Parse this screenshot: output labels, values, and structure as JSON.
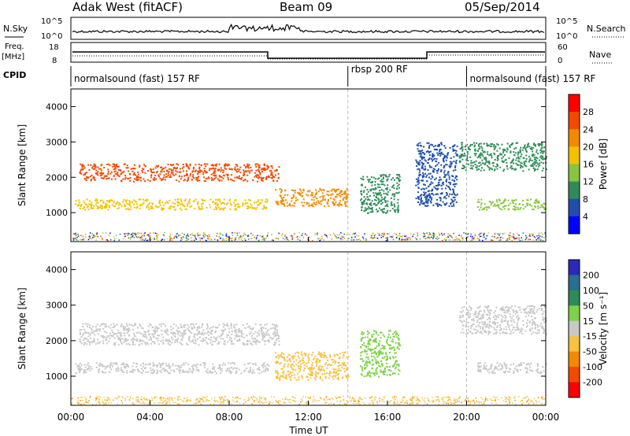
{
  "header": {
    "station": "Adak West (fitACF)",
    "beam": "Beam 09",
    "date": "05/Sep/2014"
  },
  "top_panels": {
    "nsky_label": "N.Sky",
    "nsky_ticks": [
      "10^5",
      "10^0"
    ],
    "nsearch_label": "N.Search",
    "nsearch_ticks": [
      "10^5",
      "10^0"
    ],
    "freq_label": "Freq.",
    "freq_unit": "[MHz]",
    "freq_ticks": [
      "18",
      "8"
    ],
    "nave_label": "Nave",
    "nave_ticks": [
      "60",
      "0"
    ],
    "cpid_label": "CPID"
  },
  "cpid_segments": [
    {
      "label": "normalsound (fast) 157 RF",
      "start": 0,
      "end": 14
    },
    {
      "label": "rbsp 200 RF",
      "start": 14,
      "end": 20
    },
    {
      "label": "normalsound (fast) 157 RF",
      "start": 20,
      "end": 24
    }
  ],
  "colorbars": {
    "power": {
      "label": "Power [dB]",
      "ticks": [
        "4",
        "8",
        "12",
        "16",
        "20",
        "24",
        "28"
      ],
      "colors": [
        "#0000ff",
        "#1f4faa",
        "#2e8b57",
        "#88c440",
        "#f2c200",
        "#f28a00",
        "#f24a00",
        "#ff0000"
      ]
    },
    "velocity": {
      "label": "Velocity [m s⁻¹]",
      "ticks": [
        "200",
        "100",
        "50",
        "15",
        "-15",
        "-50",
        "-100",
        "-200"
      ],
      "colors": [
        "#2a2ab8",
        "#2a6f8f",
        "#2e8b57",
        "#7fd14a",
        "#c8c8c8",
        "#f5c242",
        "#f28a00",
        "#f24a00",
        "#ff0000"
      ]
    }
  },
  "chart_data": [
    {
      "type": "heatmap",
      "title": "Power",
      "ylabel": "Slant Range [km]",
      "xlabel": "Time UT",
      "x_ticks": [
        "00:00",
        "04:00",
        "08:00",
        "12:00",
        "16:00",
        "20:00",
        "00:00"
      ],
      "y_ticks": [
        "1000",
        "2000",
        "3000",
        "4000"
      ],
      "xlim_hours": [
        0,
        24
      ],
      "ylim_km": [
        180,
        4500
      ],
      "regions": [
        {
          "t0": 0.4,
          "t1": 10.5,
          "r0": 1900,
          "r1": 2400,
          "level": 24
        },
        {
          "t0": 0.2,
          "t1": 10.0,
          "r0": 1100,
          "r1": 1400,
          "level": 16
        },
        {
          "t0": 10.3,
          "t1": 14.0,
          "r0": 1200,
          "r1": 1700,
          "level": 20
        },
        {
          "t0": 14.6,
          "t1": 16.6,
          "r0": 1000,
          "r1": 2100,
          "level": 8
        },
        {
          "t0": 17.4,
          "t1": 19.5,
          "r0": 1200,
          "r1": 3000,
          "level": 4
        },
        {
          "t0": 19.6,
          "t1": 24.0,
          "r0": 2200,
          "r1": 3000,
          "level": 8
        },
        {
          "t0": 20.5,
          "t1": 24.0,
          "r0": 1100,
          "r1": 1400,
          "level": 12
        }
      ]
    },
    {
      "type": "heatmap",
      "title": "Velocity",
      "ylabel": "Slant Range [km]",
      "xlabel": "Time UT",
      "x_ticks": [
        "00:00",
        "04:00",
        "08:00",
        "12:00",
        "16:00",
        "20:00",
        "00:00"
      ],
      "y_ticks": [
        "1000",
        "2000",
        "3000",
        "4000"
      ],
      "xlim_hours": [
        0,
        24
      ],
      "ylim_km": [
        180,
        4500
      ],
      "regions": [
        {
          "t0": 0.4,
          "t1": 10.5,
          "r0": 1900,
          "r1": 2500,
          "level": 0
        },
        {
          "t0": 0.2,
          "t1": 10.0,
          "r0": 1100,
          "r1": 1400,
          "level": 0
        },
        {
          "t0": 10.3,
          "t1": 14.0,
          "r0": 900,
          "r1": 1700,
          "level": -50
        },
        {
          "t0": 14.6,
          "t1": 16.6,
          "r0": 1000,
          "r1": 2300,
          "level": 20
        },
        {
          "t0": 19.6,
          "t1": 24.0,
          "r0": 2200,
          "r1": 3000,
          "level": 0
        },
        {
          "t0": 20.5,
          "t1": 24.0,
          "r0": 1100,
          "r1": 1400,
          "level": 0
        }
      ]
    }
  ]
}
